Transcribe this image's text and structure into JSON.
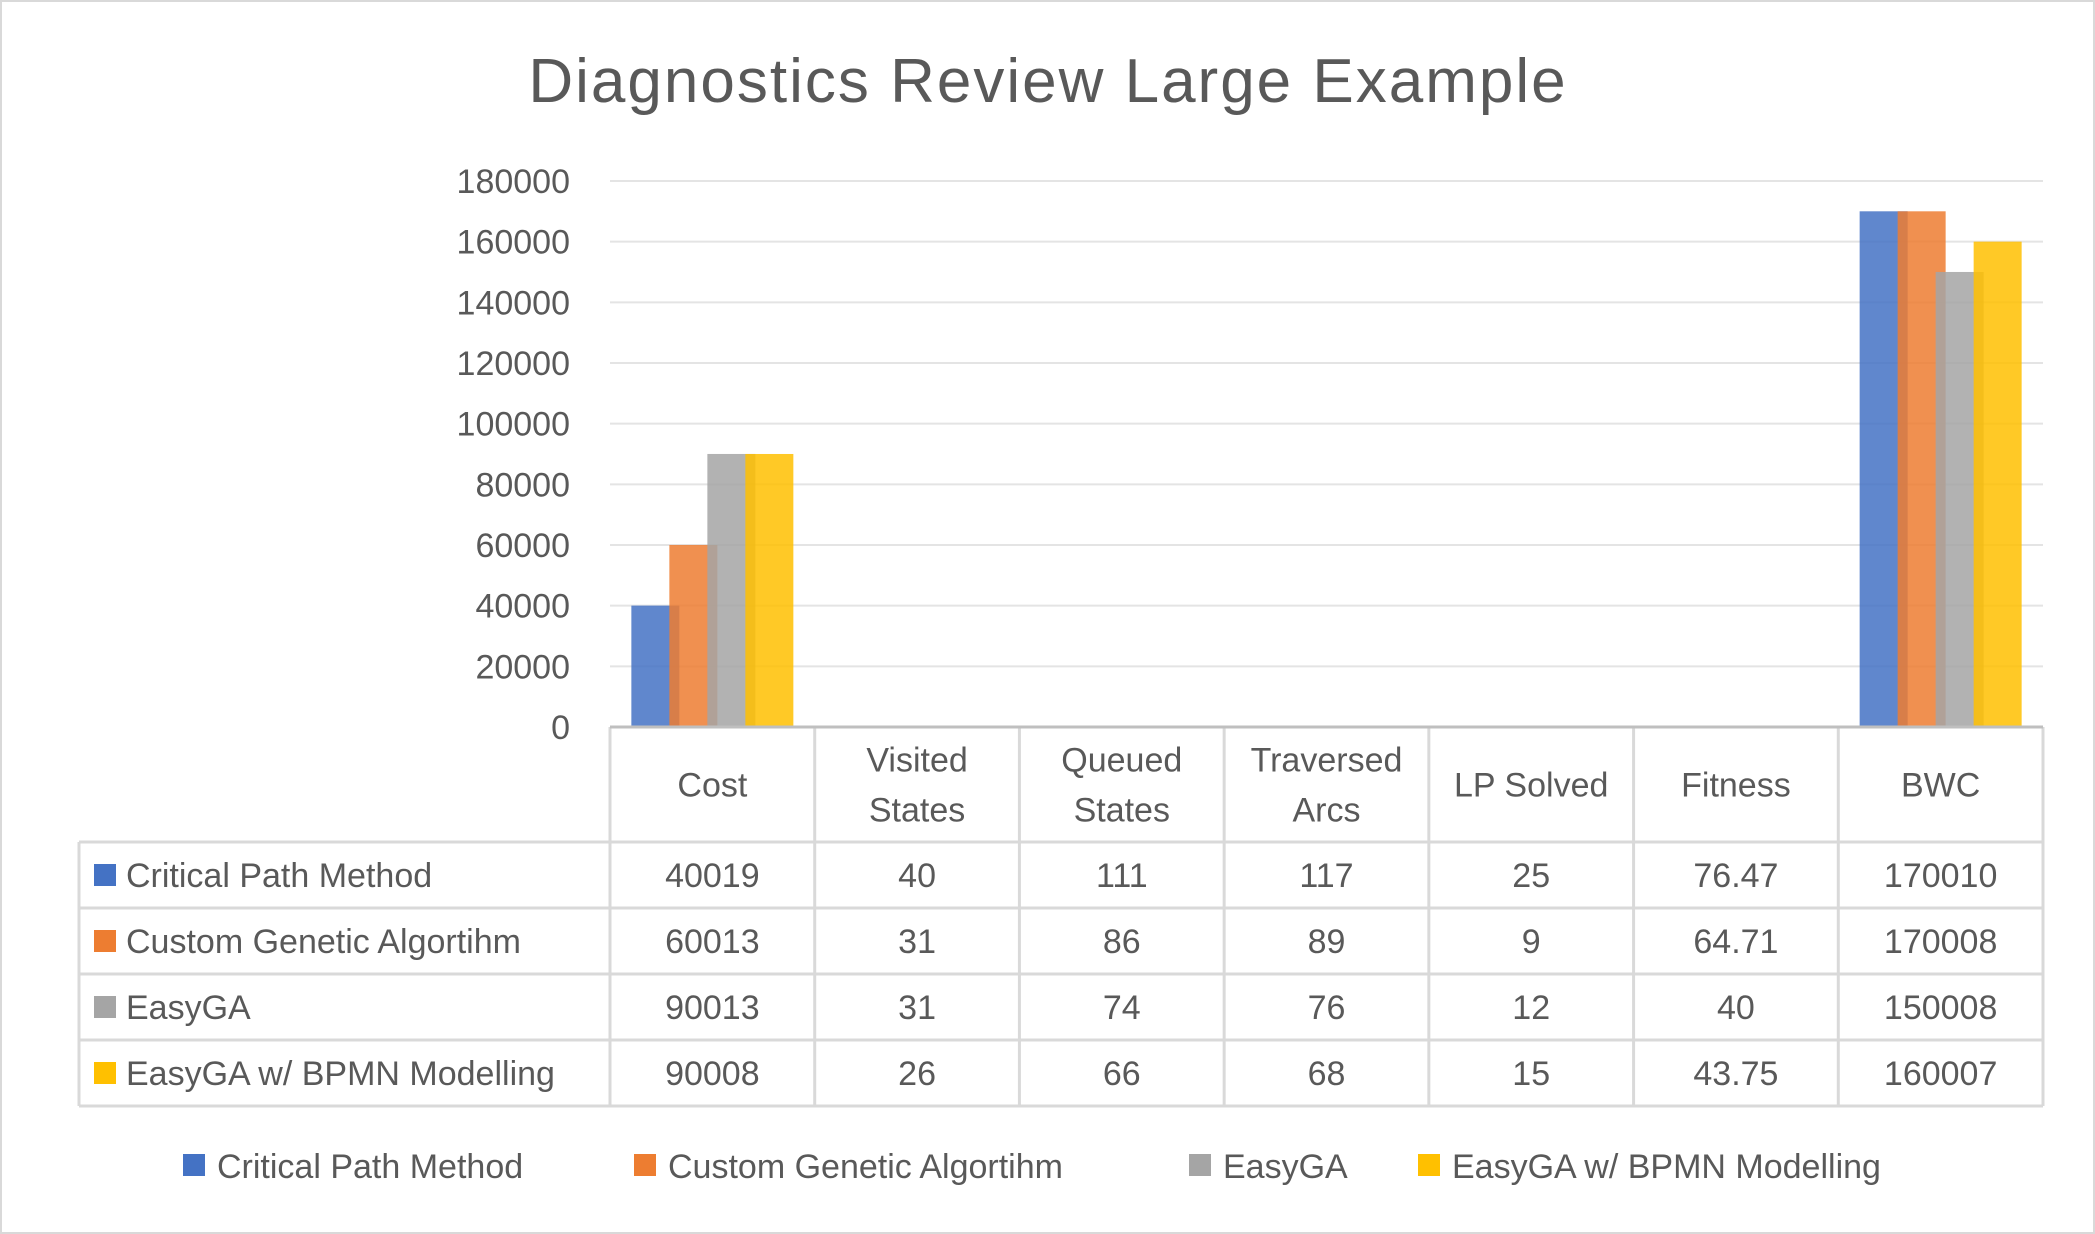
{
  "chart_data": {
    "type": "bar",
    "title": "Diagnostics Review Large Example",
    "categories": [
      "Cost",
      "Visited States",
      "Queued States",
      "Traversed Arcs",
      "LP Solved",
      "Fitness",
      "BWC"
    ],
    "category_lines": [
      [
        "Cost"
      ],
      [
        "Visited",
        "States"
      ],
      [
        "Queued",
        "States"
      ],
      [
        "Traversed",
        "Arcs"
      ],
      [
        "LP Solved"
      ],
      [
        "Fitness"
      ],
      [
        "BWC"
      ]
    ],
    "ylim": [
      0,
      180000
    ],
    "yticks": [
      0,
      20000,
      40000,
      60000,
      80000,
      100000,
      120000,
      140000,
      160000,
      180000
    ],
    "grid": true,
    "legend_position": "bottom",
    "data_table": true,
    "series": [
      {
        "name": "Critical Path Method",
        "color": "#4472C4",
        "values": [
          40019,
          40,
          111,
          117,
          25,
          76.47,
          170010
        ]
      },
      {
        "name": "Custom Genetic Algortihm",
        "color": "#ED7D31",
        "values": [
          60013,
          31,
          86,
          89,
          9,
          64.71,
          170008
        ]
      },
      {
        "name": "EasyGA",
        "color": "#A5A5A5",
        "values": [
          90013,
          31,
          74,
          76,
          12,
          40,
          150008
        ]
      },
      {
        "name": "EasyGA w/ BPMN Modelling",
        "color": "#FFC000",
        "values": [
          90008,
          26,
          66,
          68,
          15,
          43.75,
          160007
        ]
      }
    ]
  }
}
